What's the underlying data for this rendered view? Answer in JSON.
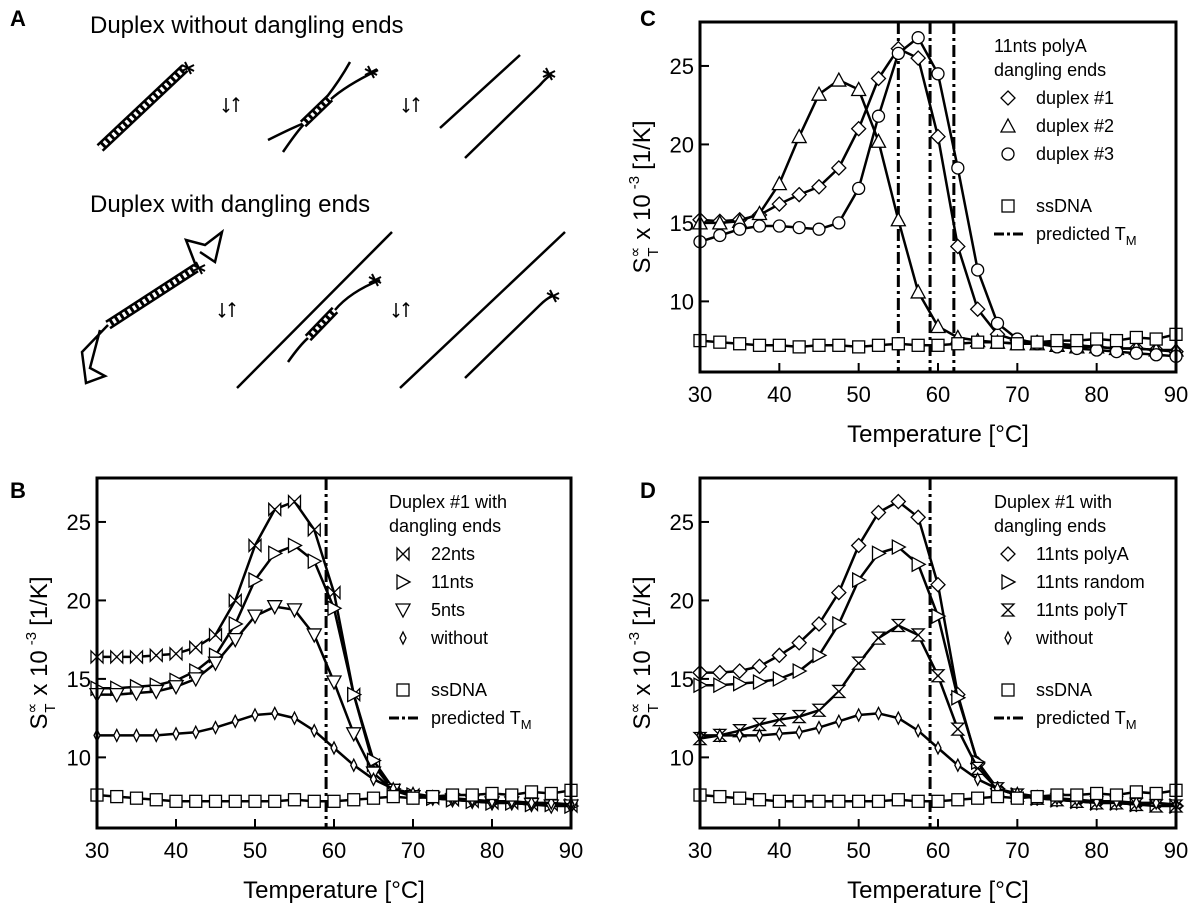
{
  "panel_a": {
    "label": "A",
    "titles": [
      "Duplex without dangling ends",
      "Duplex with dangling ends"
    ]
  },
  "chart_data": [
    {
      "type": "scatter",
      "label": "C",
      "xlabel": "Temperature [°C]",
      "ylabel": {
        "symbol": "S",
        "sup": "∝",
        "sub": "T",
        "text": "x 10",
        "exp": "-3",
        "unit": "[1/K]"
      },
      "x": [
        30,
        32.5,
        35,
        37.5,
        40,
        42.5,
        45,
        47.5,
        50,
        52.5,
        55,
        57.5,
        60,
        62.5,
        65,
        67.5,
        70,
        72.5,
        75,
        77.5,
        80,
        82.5,
        85,
        87.5,
        90
      ],
      "xlim": [
        30,
        90
      ],
      "xticks": [
        30,
        40,
        50,
        60,
        70,
        80,
        90
      ],
      "ylim": [
        5.5,
        27.8
      ],
      "yticks": [
        10,
        15,
        20,
        25
      ],
      "legend": "upper right",
      "legend_title": [
        "11nts polyA",
        "dangling ends"
      ],
      "series": [
        {
          "name": "duplex #1",
          "marker": "diamond",
          "color": "#000000",
          "values": [
            15.2,
            15.1,
            15.2,
            15.5,
            16.2,
            16.8,
            17.3,
            18.5,
            21,
            24.2,
            26.1,
            25.5,
            20.5,
            13.5,
            9.5,
            7.9,
            7.5,
            7.4,
            7.3,
            7.2,
            7.1,
            7.0,
            7.0,
            6.9,
            6.8
          ]
        },
        {
          "name": "duplex #2",
          "marker": "triangle-up",
          "color": "#000000",
          "values": [
            15.0,
            15.0,
            15.1,
            15.6,
            17.5,
            20.5,
            23.2,
            24.1,
            23.5,
            20.2,
            15.2,
            10.6,
            8.4,
            7.7,
            7.5,
            7.4,
            7.3,
            7.3,
            7.2,
            7.1,
            7.1,
            7.0,
            7.0,
            6.9,
            6.9
          ]
        },
        {
          "name": "duplex #3",
          "marker": "circle",
          "color": "#000000",
          "values": [
            13.8,
            14.2,
            14.6,
            14.8,
            14.8,
            14.7,
            14.6,
            15.0,
            17.2,
            21.8,
            25.8,
            26.8,
            24.5,
            18.5,
            12.0,
            8.6,
            7.6,
            7.3,
            7.1,
            7.0,
            6.9,
            6.8,
            6.7,
            6.6,
            6.5
          ]
        },
        {
          "name": "ssDNA",
          "marker": "square",
          "color": "#000000",
          "values": [
            7.5,
            7.4,
            7.3,
            7.2,
            7.2,
            7.1,
            7.2,
            7.2,
            7.1,
            7.2,
            7.3,
            7.2,
            7.2,
            7.3,
            7.4,
            7.4,
            7.3,
            7.4,
            7.5,
            7.5,
            7.6,
            7.5,
            7.7,
            7.6,
            7.9
          ]
        }
      ],
      "vlines": [
        55,
        59,
        62
      ],
      "vline_name": "predicted T",
      "vline_name_sub": "M"
    },
    {
      "type": "scatter",
      "label": "B",
      "xlabel": "Temperature [°C]",
      "ylabel": {
        "symbol": "S",
        "sup": "∝",
        "sub": "T",
        "text": "x 10",
        "exp": "-3",
        "unit": "[1/K]"
      },
      "x": [
        30,
        32.5,
        35,
        37.5,
        40,
        42.5,
        45,
        47.5,
        50,
        52.5,
        55,
        57.5,
        60,
        62.5,
        65,
        67.5,
        70,
        72.5,
        75,
        77.5,
        80,
        82.5,
        85,
        87.5,
        90
      ],
      "xlim": [
        30,
        90
      ],
      "xticks": [
        30,
        40,
        50,
        60,
        70,
        80,
        90
      ],
      "ylim": [
        5.5,
        27.8
      ],
      "yticks": [
        10,
        15,
        20,
        25
      ],
      "legend": "upper right",
      "legend_title": [
        "Duplex #1 with",
        "dangling ends"
      ],
      "series": [
        {
          "name": "22nts",
          "marker": "bowtie",
          "color": "#000000",
          "values": [
            16.4,
            16.4,
            16.4,
            16.5,
            16.6,
            17.0,
            17.8,
            20.0,
            23.5,
            25.8,
            26.3,
            24.5,
            20.5,
            14.0,
            9.5,
            7.9,
            7.6,
            7.4,
            7.3,
            7.2,
            7.1,
            7.1,
            7.0,
            7.0,
            6.9
          ]
        },
        {
          "name": "11nts",
          "marker": "triangle-right",
          "color": "#000000",
          "values": [
            14.4,
            14.4,
            14.5,
            14.6,
            14.9,
            15.5,
            16.5,
            18.5,
            21.3,
            23.0,
            23.5,
            22.5,
            19.5,
            14.0,
            9.8,
            8.0,
            7.6,
            7.4,
            7.3,
            7.2,
            7.1,
            7.1,
            7.0,
            7.0,
            6.9
          ]
        },
        {
          "name": "5nts",
          "marker": "triangle-down",
          "color": "#000000",
          "values": [
            14.0,
            14.0,
            14.1,
            14.2,
            14.5,
            15.0,
            16.0,
            17.5,
            19.0,
            19.6,
            19.4,
            17.8,
            14.8,
            11.5,
            9.0,
            7.9,
            7.5,
            7.4,
            7.3,
            7.2,
            7.1,
            7.1,
            7.0,
            6.9,
            6.9
          ]
        },
        {
          "name": "without",
          "marker": "small-diamond",
          "color": "#000000",
          "values": [
            11.4,
            11.4,
            11.4,
            11.4,
            11.5,
            11.6,
            11.9,
            12.3,
            12.7,
            12.8,
            12.5,
            11.7,
            10.6,
            9.5,
            8.6,
            8.0,
            7.7,
            7.5,
            7.4,
            7.3,
            7.2,
            7.2,
            7.1,
            7.1,
            7.0
          ]
        },
        {
          "name": "ssDNA",
          "marker": "square",
          "color": "#000000",
          "values": [
            7.6,
            7.5,
            7.4,
            7.3,
            7.2,
            7.2,
            7.2,
            7.2,
            7.2,
            7.2,
            7.3,
            7.2,
            7.2,
            7.3,
            7.4,
            7.5,
            7.4,
            7.5,
            7.6,
            7.6,
            7.7,
            7.6,
            7.8,
            7.7,
            7.9
          ]
        }
      ],
      "vlines": [
        59
      ],
      "vline_name": "predicted T",
      "vline_name_sub": "M"
    },
    {
      "type": "scatter",
      "label": "D",
      "xlabel": "Temperature [°C]",
      "ylabel": {
        "symbol": "S",
        "sup": "∝",
        "sub": "T",
        "text": "x 10",
        "exp": "-3",
        "unit": "[1/K]"
      },
      "x": [
        30,
        32.5,
        35,
        37.5,
        40,
        42.5,
        45,
        47.5,
        50,
        52.5,
        55,
        57.5,
        60,
        62.5,
        65,
        67.5,
        70,
        72.5,
        75,
        77.5,
        80,
        82.5,
        85,
        87.5,
        90
      ],
      "xlim": [
        30,
        90
      ],
      "xticks": [
        30,
        40,
        50,
        60,
        70,
        80,
        90
      ],
      "ylim": [
        5.5,
        27.8
      ],
      "yticks": [
        10,
        15,
        20,
        25
      ],
      "legend": "upper right",
      "legend_title": [
        "Duplex #1 with",
        "dangling ends"
      ],
      "series": [
        {
          "name": "11nts polyA",
          "marker": "diamond",
          "color": "#000000",
          "values": [
            15.4,
            15.4,
            15.5,
            15.8,
            16.5,
            17.3,
            18.5,
            20.5,
            23.5,
            25.6,
            26.3,
            25.3,
            21.0,
            14.0,
            9.6,
            8.0,
            7.6,
            7.4,
            7.3,
            7.2,
            7.1,
            7.1,
            7.0,
            7.0,
            6.9
          ]
        },
        {
          "name": "11nts random",
          "marker": "triangle-right",
          "color": "#000000",
          "values": [
            14.6,
            14.6,
            14.7,
            14.8,
            15.0,
            15.5,
            16.5,
            18.5,
            21.3,
            23.0,
            23.4,
            22.3,
            19.0,
            13.8,
            9.7,
            8.0,
            7.6,
            7.4,
            7.3,
            7.2,
            7.1,
            7.1,
            7.0,
            7.0,
            6.9
          ]
        },
        {
          "name": "11nts polyT",
          "marker": "hourglass",
          "color": "#000000",
          "values": [
            11.2,
            11.4,
            11.7,
            12.1,
            12.4,
            12.6,
            13.0,
            14.2,
            16.0,
            17.6,
            18.4,
            17.8,
            15.2,
            11.8,
            9.3,
            8.0,
            7.6,
            7.4,
            7.3,
            7.2,
            7.1,
            7.1,
            7.0,
            6.9,
            6.9
          ]
        },
        {
          "name": "without",
          "marker": "small-diamond",
          "color": "#000000",
          "values": [
            11.4,
            11.4,
            11.4,
            11.4,
            11.5,
            11.6,
            11.9,
            12.3,
            12.7,
            12.8,
            12.5,
            11.7,
            10.6,
            9.5,
            8.6,
            8.0,
            7.7,
            7.5,
            7.4,
            7.3,
            7.2,
            7.2,
            7.1,
            7.1,
            7.0
          ]
        },
        {
          "name": "ssDNA",
          "marker": "square",
          "color": "#000000",
          "values": [
            7.6,
            7.5,
            7.4,
            7.3,
            7.2,
            7.2,
            7.2,
            7.2,
            7.2,
            7.2,
            7.3,
            7.2,
            7.2,
            7.3,
            7.4,
            7.5,
            7.4,
            7.5,
            7.6,
            7.6,
            7.7,
            7.6,
            7.8,
            7.7,
            7.9
          ]
        }
      ],
      "vlines": [
        59
      ],
      "vline_name": "predicted T",
      "vline_name_sub": "M"
    }
  ]
}
